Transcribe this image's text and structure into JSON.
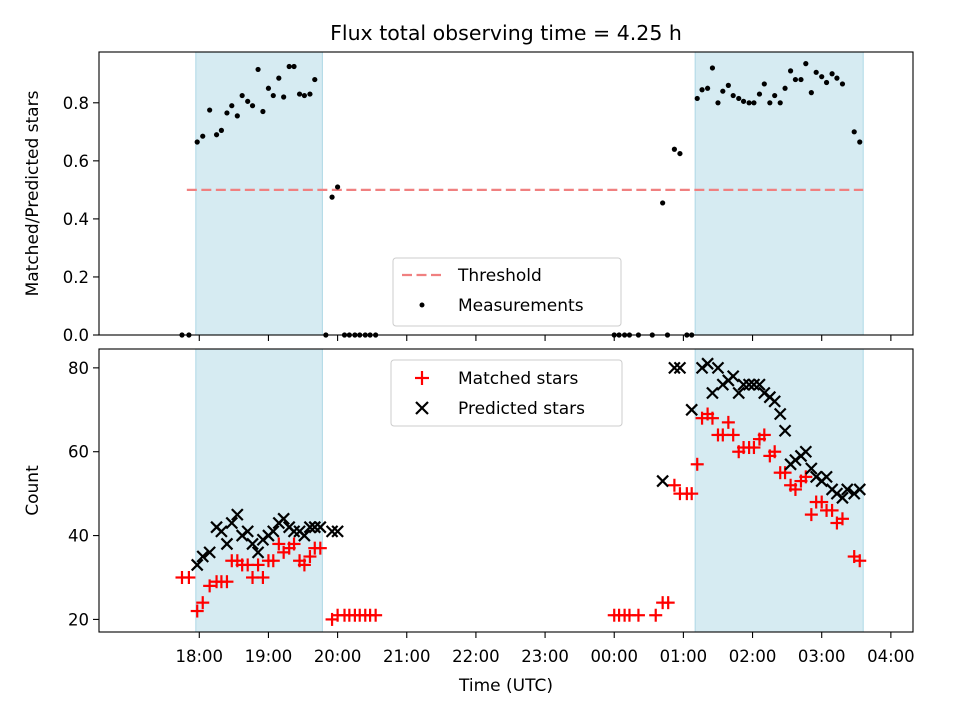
{
  "chart_data": {
    "title": "Flux total observing time = 4.25 h",
    "xlabel": "Time (UTC)",
    "x_unit": "hours since 17:00 UTC",
    "xlim": [
      -0.45,
      11.32
    ],
    "x_ticks": [
      {
        "x": 1,
        "label": "18:00"
      },
      {
        "x": 2,
        "label": "19:00"
      },
      {
        "x": 3,
        "label": "20:00"
      },
      {
        "x": 4,
        "label": "21:00"
      },
      {
        "x": 5,
        "label": "22:00"
      },
      {
        "x": 6,
        "label": "23:00"
      },
      {
        "x": 7,
        "label": "00:00"
      },
      {
        "x": 8,
        "label": "01:00"
      },
      {
        "x": 9,
        "label": "02:00"
      },
      {
        "x": 10,
        "label": "03:00"
      },
      {
        "x": 11,
        "label": "04:00"
      }
    ],
    "shaded_intervals": [
      [
        0.95,
        2.78
      ],
      [
        8.17,
        10.6
      ]
    ],
    "shade_color": "#add8e6",
    "charts": [
      {
        "type": "scatter",
        "ylabel": "Matched/Predicted stars",
        "ylim": [
          0,
          0.975
        ],
        "y_ticks": [
          0.0,
          0.2,
          0.4,
          0.6,
          0.8
        ],
        "y_tick_labels": [
          "0.0",
          "0.2",
          "0.4",
          "0.6",
          "0.8"
        ],
        "threshold": {
          "name": "Threshold",
          "value": 0.5,
          "x_range": [
            0.82,
            10.6
          ],
          "color": "#f08080"
        },
        "legend": [
          "Threshold",
          "Measurements"
        ],
        "legend_position": "lower center",
        "series": [
          {
            "name": "Measurements",
            "color": "#000000",
            "points": [
              [
                0.75,
                0
              ],
              [
                0.85,
                0
              ],
              [
                0.97,
                0.665
              ],
              [
                1.05,
                0.685
              ],
              [
                1.15,
                0.775
              ],
              [
                1.25,
                0.69
              ],
              [
                1.32,
                0.705
              ],
              [
                1.4,
                0.765
              ],
              [
                1.47,
                0.79
              ],
              [
                1.55,
                0.755
              ],
              [
                1.62,
                0.825
              ],
              [
                1.7,
                0.805
              ],
              [
                1.77,
                0.79
              ],
              [
                1.85,
                0.915
              ],
              [
                1.92,
                0.77
              ],
              [
                2.0,
                0.85
              ],
              [
                2.07,
                0.825
              ],
              [
                2.15,
                0.885
              ],
              [
                2.22,
                0.82
              ],
              [
                2.3,
                0.925
              ],
              [
                2.37,
                0.925
              ],
              [
                2.45,
                0.83
              ],
              [
                2.52,
                0.825
              ],
              [
                2.6,
                0.83
              ],
              [
                2.67,
                0.88
              ],
              [
                2.83,
                0
              ],
              [
                2.92,
                0.475
              ],
              [
                3.0,
                0.51
              ],
              [
                3.1,
                0
              ],
              [
                3.17,
                0
              ],
              [
                3.25,
                0
              ],
              [
                3.32,
                0
              ],
              [
                3.4,
                0
              ],
              [
                3.47,
                0
              ],
              [
                3.55,
                0
              ],
              [
                7.0,
                0
              ],
              [
                7.07,
                0
              ],
              [
                7.15,
                0
              ],
              [
                7.22,
                0
              ],
              [
                7.35,
                0
              ],
              [
                7.55,
                0
              ],
              [
                7.7,
                0.455
              ],
              [
                7.77,
                0
              ],
              [
                7.87,
                0.64
              ],
              [
                7.95,
                0.625
              ],
              [
                8.05,
                0
              ],
              [
                8.12,
                0
              ],
              [
                8.2,
                0.815
              ],
              [
                8.27,
                0.845
              ],
              [
                8.35,
                0.85
              ],
              [
                8.42,
                0.92
              ],
              [
                8.5,
                0.8
              ],
              [
                8.57,
                0.84
              ],
              [
                8.65,
                0.86
              ],
              [
                8.72,
                0.825
              ],
              [
                8.8,
                0.815
              ],
              [
                8.87,
                0.805
              ],
              [
                8.95,
                0.8
              ],
              [
                9.02,
                0.8
              ],
              [
                9.1,
                0.83
              ],
              [
                9.17,
                0.865
              ],
              [
                9.25,
                0.8
              ],
              [
                9.32,
                0.825
              ],
              [
                9.4,
                0.8
              ],
              [
                9.47,
                0.85
              ],
              [
                9.55,
                0.91
              ],
              [
                9.62,
                0.88
              ],
              [
                9.7,
                0.88
              ],
              [
                9.77,
                0.935
              ],
              [
                9.85,
                0.835
              ],
              [
                9.92,
                0.905
              ],
              [
                10.0,
                0.89
              ],
              [
                10.07,
                0.87
              ],
              [
                10.15,
                0.9
              ],
              [
                10.22,
                0.885
              ],
              [
                10.3,
                0.865
              ],
              [
                10.47,
                0.7
              ],
              [
                10.55,
                0.665
              ]
            ]
          }
        ]
      },
      {
        "type": "scatter",
        "ylabel": "Count",
        "ylim": [
          17,
          84.5
        ],
        "y_ticks": [
          20,
          40,
          60,
          80
        ],
        "y_tick_labels": [
          "20",
          "40",
          "60",
          "80"
        ],
        "legend": [
          "Matched stars",
          "Predicted stars"
        ],
        "legend_position": "upper center",
        "series": [
          {
            "name": "Matched stars",
            "marker": "+",
            "color": "#ff0000",
            "points": [
              [
                0.75,
                30
              ],
              [
                0.85,
                30
              ],
              [
                0.97,
                22
              ],
              [
                1.05,
                24
              ],
              [
                1.15,
                28
              ],
              [
                1.25,
                29
              ],
              [
                1.32,
                29
              ],
              [
                1.4,
                29
              ],
              [
                1.47,
                34
              ],
              [
                1.55,
                34
              ],
              [
                1.62,
                33
              ],
              [
                1.7,
                33
              ],
              [
                1.77,
                30
              ],
              [
                1.85,
                33
              ],
              [
                1.92,
                30
              ],
              [
                2.0,
                34
              ],
              [
                2.07,
                34
              ],
              [
                2.15,
                38
              ],
              [
                2.22,
                36
              ],
              [
                2.3,
                37
              ],
              [
                2.37,
                38
              ],
              [
                2.45,
                34
              ],
              [
                2.52,
                33
              ],
              [
                2.6,
                35
              ],
              [
                2.67,
                37
              ],
              [
                2.75,
                37
              ],
              [
                2.92,
                20
              ],
              [
                3.0,
                21
              ],
              [
                3.1,
                21
              ],
              [
                3.17,
                21
              ],
              [
                3.25,
                21
              ],
              [
                3.32,
                21
              ],
              [
                3.4,
                21
              ],
              [
                3.47,
                21
              ],
              [
                3.55,
                21
              ],
              [
                7.0,
                21
              ],
              [
                7.07,
                21
              ],
              [
                7.15,
                21
              ],
              [
                7.22,
                21
              ],
              [
                7.35,
                21
              ],
              [
                7.6,
                21
              ],
              [
                7.7,
                24
              ],
              [
                7.78,
                24
              ],
              [
                7.87,
                52
              ],
              [
                7.95,
                50
              ],
              [
                8.05,
                50
              ],
              [
                8.12,
                50
              ],
              [
                8.2,
                57
              ],
              [
                8.27,
                68
              ],
              [
                8.35,
                69
              ],
              [
                8.42,
                68
              ],
              [
                8.5,
                64
              ],
              [
                8.57,
                64
              ],
              [
                8.65,
                67
              ],
              [
                8.72,
                64
              ],
              [
                8.8,
                60
              ],
              [
                8.87,
                61
              ],
              [
                8.95,
                61
              ],
              [
                9.02,
                61
              ],
              [
                9.1,
                63
              ],
              [
                9.17,
                64
              ],
              [
                9.25,
                59
              ],
              [
                9.32,
                60
              ],
              [
                9.4,
                55
              ],
              [
                9.47,
                55
              ],
              [
                9.55,
                52
              ],
              [
                9.62,
                51
              ],
              [
                9.7,
                53
              ],
              [
                9.77,
                54
              ],
              [
                9.85,
                45
              ],
              [
                9.92,
                48
              ],
              [
                10.0,
                48
              ],
              [
                10.07,
                46
              ],
              [
                10.15,
                46
              ],
              [
                10.22,
                43
              ],
              [
                10.3,
                44
              ],
              [
                10.47,
                35
              ],
              [
                10.55,
                34
              ]
            ]
          },
          {
            "name": "Predicted stars",
            "marker": "x",
            "color": "#000000",
            "points": [
              [
                0.97,
                33
              ],
              [
                1.05,
                35
              ],
              [
                1.15,
                36
              ],
              [
                1.25,
                42
              ],
              [
                1.32,
                41
              ],
              [
                1.4,
                38
              ],
              [
                1.47,
                43
              ],
              [
                1.55,
                45
              ],
              [
                1.62,
                40
              ],
              [
                1.7,
                41
              ],
              [
                1.77,
                38
              ],
              [
                1.85,
                36
              ],
              [
                1.92,
                39
              ],
              [
                2.0,
                40
              ],
              [
                2.07,
                41
              ],
              [
                2.15,
                43
              ],
              [
                2.22,
                44
              ],
              [
                2.3,
                42
              ],
              [
                2.37,
                41
              ],
              [
                2.45,
                41
              ],
              [
                2.52,
                40
              ],
              [
                2.6,
                42
              ],
              [
                2.67,
                42
              ],
              [
                2.75,
                42
              ],
              [
                2.92,
                41
              ],
              [
                3.0,
                41
              ],
              [
                7.7,
                53
              ],
              [
                7.87,
                80
              ],
              [
                7.95,
                80
              ],
              [
                8.12,
                70
              ],
              [
                8.27,
                80
              ],
              [
                8.35,
                81
              ],
              [
                8.42,
                74
              ],
              [
                8.5,
                80
              ],
              [
                8.57,
                76
              ],
              [
                8.65,
                77
              ],
              [
                8.72,
                78
              ],
              [
                8.8,
                74
              ],
              [
                8.87,
                76
              ],
              [
                8.95,
                76
              ],
              [
                9.02,
                76
              ],
              [
                9.1,
                76
              ],
              [
                9.17,
                74
              ],
              [
                9.25,
                73
              ],
              [
                9.32,
                72
              ],
              [
                9.4,
                69
              ],
              [
                9.47,
                65
              ],
              [
                9.55,
                57
              ],
              [
                9.62,
                58
              ],
              [
                9.7,
                59
              ],
              [
                9.77,
                60
              ],
              [
                9.85,
                56
              ],
              [
                9.92,
                54
              ],
              [
                10.0,
                53
              ],
              [
                10.07,
                54
              ],
              [
                10.15,
                51
              ],
              [
                10.22,
                50
              ],
              [
                10.3,
                49
              ],
              [
                10.37,
                51
              ],
              [
                10.47,
                50
              ],
              [
                10.55,
                51
              ]
            ]
          }
        ]
      }
    ]
  }
}
